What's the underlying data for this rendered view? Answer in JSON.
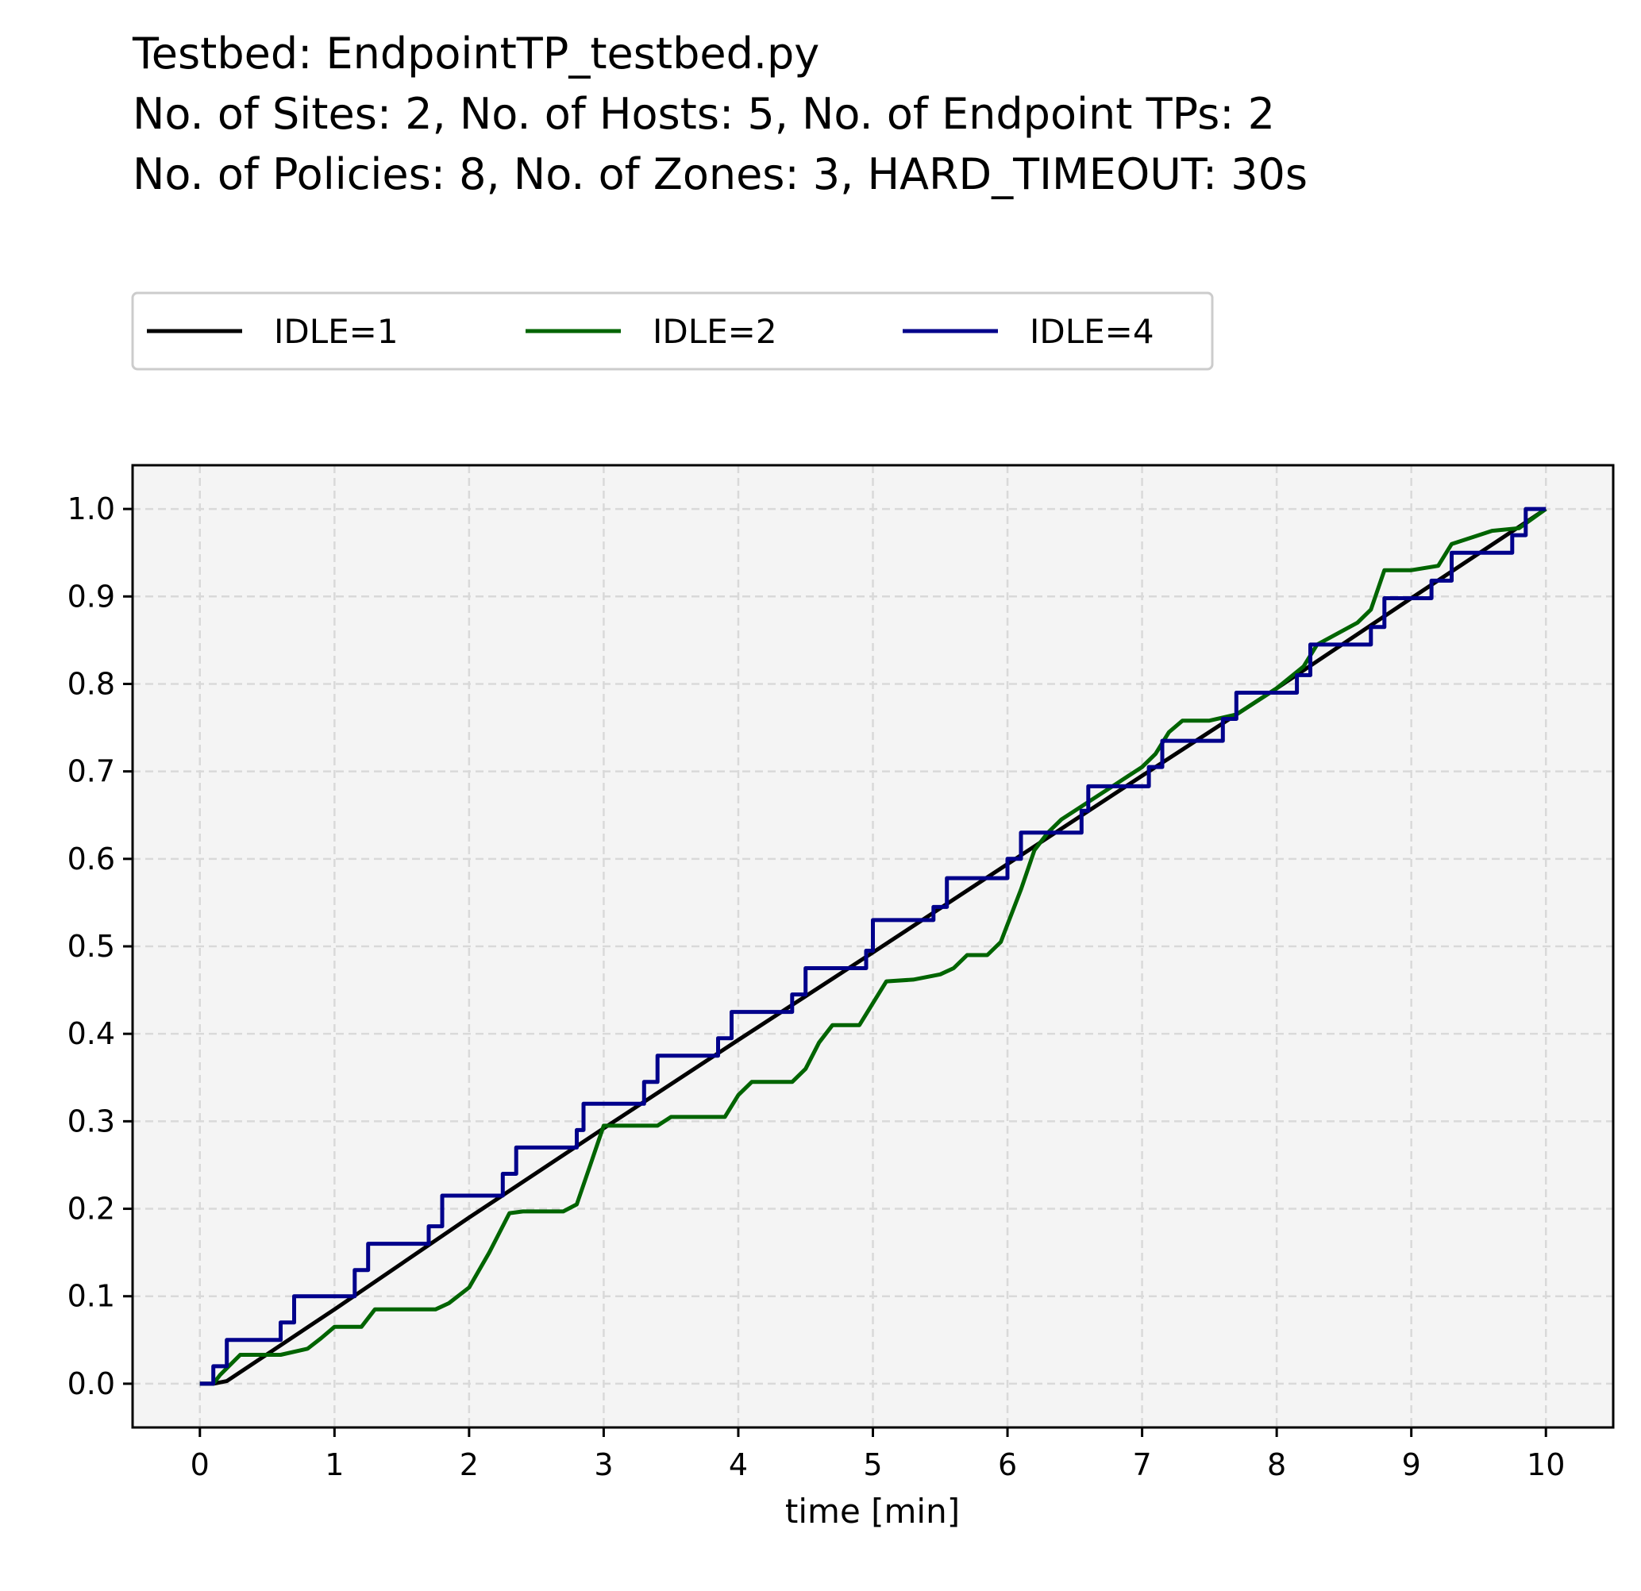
{
  "chart_data": {
    "type": "line",
    "title_lines": [
      "Testbed: EndpointTP_testbed.py",
      "No. of Sites: 2, No. of Hosts: 5, No. of Endpoint TPs: 2",
      "No. of Policies: 8, No. of Zones: 3, HARD_TIMEOUT: 30s"
    ],
    "xlabel": "time [min]",
    "ylabel": "",
    "xlim": [
      -0.5,
      10.5
    ],
    "ylim": [
      -0.05,
      1.05
    ],
    "xticks": [
      0,
      1,
      2,
      3,
      4,
      5,
      6,
      7,
      8,
      9,
      10
    ],
    "yticks": [
      0.0,
      0.1,
      0.2,
      0.3,
      0.4,
      0.5,
      0.6,
      0.7,
      0.8,
      0.9,
      1.0
    ],
    "xtick_labels": [
      "0",
      "1",
      "2",
      "3",
      "4",
      "5",
      "6",
      "7",
      "8",
      "9",
      "10"
    ],
    "ytick_labels": [
      "0.0",
      "0.1",
      "0.2",
      "0.3",
      "0.4",
      "0.5",
      "0.6",
      "0.7",
      "0.8",
      "0.9",
      "1.0"
    ],
    "grid": true,
    "legend_position": "top-left, above plot",
    "colors": {
      "background": "#f4f4f4",
      "grid": "#d9d9d9"
    },
    "series": [
      {
        "name": "IDLE=1",
        "color": "#000000",
        "x": [
          0,
          0.1,
          0.2,
          1,
          2,
          3,
          4,
          5,
          6,
          7,
          8,
          9,
          10
        ],
        "y": [
          0,
          0,
          0.003,
          0.085,
          0.19,
          0.292,
          0.393,
          0.493,
          0.594,
          0.695,
          0.795,
          0.898,
          1.0
        ]
      },
      {
        "name": "IDLE=2",
        "color": "#006400",
        "x": [
          0,
          0.1,
          0.15,
          0.3,
          0.6,
          0.8,
          0.9,
          1.0,
          1.2,
          1.3,
          1.75,
          1.85,
          2.0,
          2.15,
          2.3,
          2.4,
          2.7,
          2.8,
          2.9,
          3.0,
          3.4,
          3.5,
          3.9,
          4.0,
          4.1,
          4.4,
          4.5,
          4.6,
          4.7,
          4.9,
          5.0,
          5.1,
          5.3,
          5.5,
          5.6,
          5.7,
          5.85,
          5.95,
          6.0,
          6.1,
          6.2,
          6.3,
          6.4,
          6.6,
          6.7,
          6.8,
          6.9,
          7.0,
          7.1,
          7.2,
          7.3,
          7.5,
          7.7,
          7.9,
          8.0,
          8.2,
          8.3,
          8.6,
          8.7,
          8.8,
          9.0,
          9.2,
          9.3,
          9.6,
          9.8,
          10.0
        ],
        "y": [
          0,
          0,
          0.01,
          0.033,
          0.033,
          0.04,
          0.052,
          0.065,
          0.065,
          0.085,
          0.085,
          0.092,
          0.11,
          0.15,
          0.195,
          0.197,
          0.197,
          0.205,
          0.25,
          0.295,
          0.295,
          0.305,
          0.305,
          0.33,
          0.345,
          0.345,
          0.36,
          0.39,
          0.41,
          0.41,
          0.435,
          0.46,
          0.462,
          0.468,
          0.475,
          0.49,
          0.49,
          0.505,
          0.525,
          0.565,
          0.61,
          0.63,
          0.645,
          0.665,
          0.675,
          0.685,
          0.695,
          0.705,
          0.72,
          0.745,
          0.758,
          0.758,
          0.765,
          0.785,
          0.795,
          0.82,
          0.845,
          0.87,
          0.885,
          0.93,
          0.93,
          0.935,
          0.96,
          0.975,
          0.978,
          1.0
        ]
      },
      {
        "name": "IDLE=4",
        "color": "#00008b",
        "steps": [
          [
            0.0,
            0.0
          ],
          [
            0.1,
            0.02
          ],
          [
            0.2,
            0.05
          ],
          [
            0.6,
            0.07
          ],
          [
            0.7,
            0.1
          ],
          [
            1.15,
            0.13
          ],
          [
            1.25,
            0.16
          ],
          [
            1.7,
            0.18
          ],
          [
            1.8,
            0.215
          ],
          [
            2.25,
            0.24
          ],
          [
            2.35,
            0.27
          ],
          [
            2.8,
            0.29
          ],
          [
            2.85,
            0.32
          ],
          [
            3.3,
            0.345
          ],
          [
            3.4,
            0.375
          ],
          [
            3.85,
            0.395
          ],
          [
            3.95,
            0.425
          ],
          [
            4.4,
            0.445
          ],
          [
            4.5,
            0.475
          ],
          [
            4.95,
            0.495
          ],
          [
            5.0,
            0.53
          ],
          [
            5.45,
            0.545
          ],
          [
            5.55,
            0.578
          ],
          [
            6.0,
            0.6
          ],
          [
            6.1,
            0.63
          ],
          [
            6.55,
            0.655
          ],
          [
            6.6,
            0.683
          ],
          [
            7.05,
            0.705
          ],
          [
            7.15,
            0.735
          ],
          [
            7.6,
            0.76
          ],
          [
            7.7,
            0.79
          ],
          [
            8.15,
            0.81
          ],
          [
            8.25,
            0.845
          ],
          [
            8.7,
            0.865
          ],
          [
            8.8,
            0.898
          ],
          [
            9.15,
            0.918
          ],
          [
            9.3,
            0.95
          ],
          [
            9.75,
            0.97
          ],
          [
            9.85,
            1.0
          ],
          [
            10.0,
            1.0
          ]
        ]
      }
    ]
  }
}
